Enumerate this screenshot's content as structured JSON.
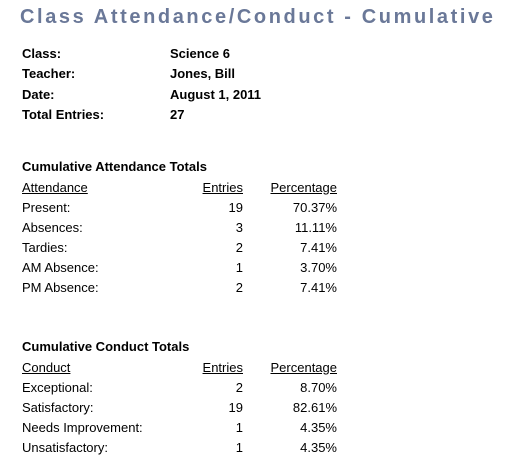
{
  "header": {
    "title": "Class Attendance/Conduct - Cumulative"
  },
  "info": [
    {
      "label": "Class:",
      "value": "Science 6"
    },
    {
      "label": "Teacher:",
      "value": "Jones, Bill"
    },
    {
      "label": "Date:",
      "value": "August 1, 2011"
    },
    {
      "label": "Total Entries:",
      "value": "27"
    }
  ],
  "sections": [
    {
      "heading": "Cumulative Attendance Totals",
      "columns": [
        "Attendance",
        "Entries",
        "Percentage"
      ],
      "rows": [
        [
          "Present:",
          "19",
          "70.37%"
        ],
        [
          "Absences:",
          "3",
          "11.11%"
        ],
        [
          "Tardies:",
          "2",
          "7.41%"
        ],
        [
          "AM Absence:",
          "1",
          "3.70%"
        ],
        [
          "PM Absence:",
          "2",
          "7.41%"
        ]
      ]
    },
    {
      "heading": "Cumulative Conduct Totals",
      "columns": [
        "Conduct",
        "Entries",
        "Percentage"
      ],
      "rows": [
        [
          "Exceptional:",
          "2",
          "8.70%"
        ],
        [
          "Satisfactory:",
          "19",
          "82.61%"
        ],
        [
          "Needs Improvement:",
          "1",
          "4.35%"
        ],
        [
          "Unsatisfactory:",
          "1",
          "4.35%"
        ]
      ]
    }
  ]
}
